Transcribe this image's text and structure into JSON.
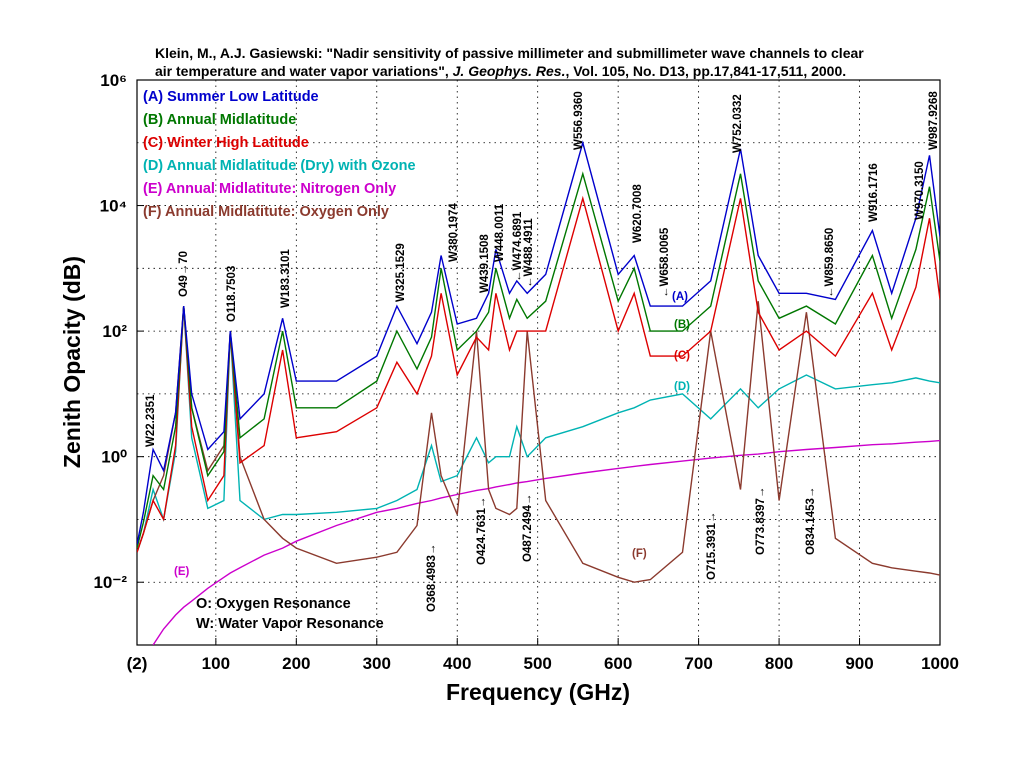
{
  "chart_data": {
    "type": "line",
    "title": [
      "Klein, M., A.J. Gasiewski: \"Nadir sensitivity of passive millimeter and submillimeter wave channels to clear",
      [
        "air temperature  and water vapor variations\", ",
        "J. Geophys. Res.",
        ", Vol. 105, No. D13, pp.17,841-17,511, 2000."
      ]
    ],
    "xlabel": "Frequency (GHz)",
    "ylabel": "Zenith Opacity (dB)",
    "log_y": true,
    "grid": true,
    "xlim": [
      2,
      1000
    ],
    "ylim": [
      0.001,
      1000000
    ],
    "xticks": [
      {
        "value": 2,
        "label": "(2)"
      },
      100,
      200,
      300,
      400,
      500,
      600,
      700,
      800,
      900,
      1000
    ],
    "yticks": [
      {
        "value": 0.01,
        "label": "10⁻²"
      },
      {
        "value": 1,
        "label": "10⁰"
      },
      {
        "value": 100,
        "label": "10²"
      },
      {
        "value": 10000,
        "label": "10⁴"
      },
      {
        "value": 1000000,
        "label": "10⁶"
      }
    ],
    "y_minor_ticks": [
      0.1,
      10,
      1000,
      100000
    ],
    "x": [
      2,
      10,
      22,
      35,
      50,
      60,
      70,
      90,
      110,
      118,
      130,
      160,
      183,
      200,
      250,
      300,
      325,
      350,
      368,
      380,
      400,
      424,
      439,
      448,
      465,
      474,
      487,
      510,
      556,
      600,
      620,
      640,
      680,
      715,
      752,
      774,
      800,
      834,
      870,
      916,
      940,
      970,
      987,
      1000
    ],
    "series": [
      {
        "name": "(A) Summer Low Latitude",
        "color": "#0000cc",
        "values": [
          0.04,
          0.13,
          1.3,
          0.6,
          5,
          250,
          10,
          1.3,
          2.5,
          100,
          4,
          10,
          160,
          16,
          16,
          40,
          250,
          63,
          200,
          1600,
          130,
          160,
          400,
          2000,
          400,
          630,
          400,
          800,
          100000,
          800,
          1600,
          250,
          250,
          630,
          80000,
          1600,
          400,
          400,
          320,
          4000,
          400,
          6300,
          63000,
          3200
        ]
      },
      {
        "name": "(B) Annual Midlatitude",
        "color": "#007700",
        "values": [
          0.035,
          0.09,
          0.5,
          0.3,
          3,
          250,
          6,
          0.5,
          1.2,
          100,
          2,
          4,
          100,
          6,
          6,
          16,
          100,
          25,
          80,
          1000,
          50,
          100,
          200,
          1000,
          160,
          320,
          160,
          300,
          32000,
          300,
          1000,
          100,
          100,
          250,
          32000,
          630,
          160,
          250,
          130,
          1600,
          160,
          2000,
          20000,
          1300
        ]
      },
      {
        "name": "(C) Winter High Latitude",
        "color": "#dd0000",
        "values": [
          0.03,
          0.06,
          0.2,
          0.1,
          1.5,
          250,
          3,
          0.2,
          0.5,
          100,
          0.8,
          1.5,
          50,
          2,
          2.5,
          6,
          32,
          10,
          40,
          400,
          20,
          80,
          50,
          400,
          50,
          100,
          100,
          100,
          13000,
          100,
          400,
          40,
          40,
          100,
          13000,
          200,
          50,
          100,
          40,
          400,
          50,
          500,
          6300,
          320
        ]
      },
      {
        "name": "(D) Annual Midlatitude (Dry) with Ozone",
        "color": "#00b3b3",
        "values": [
          0.03,
          0.06,
          0.3,
          0.1,
          1.2,
          250,
          2,
          0.15,
          0.2,
          100,
          0.2,
          0.1,
          0.12,
          0.12,
          0.13,
          0.15,
          0.2,
          0.3,
          1.5,
          0.4,
          0.5,
          2,
          0.8,
          1,
          1,
          3,
          1,
          2,
          3,
          5,
          6,
          8,
          10,
          4,
          12,
          6,
          12,
          20,
          12,
          14,
          15,
          18,
          16,
          15
        ]
      },
      {
        "name": "(E) Annual Midlatitute: Nitrogen Only",
        "color": "#cc00cc",
        "values": [
          null,
          null,
          0.001,
          0.0018,
          0.003,
          0.004,
          0.005,
          0.008,
          0.012,
          0.014,
          0.017,
          0.027,
          0.035,
          0.045,
          0.08,
          0.13,
          0.15,
          0.18,
          0.2,
          0.22,
          0.25,
          0.29,
          0.31,
          0.33,
          0.36,
          0.38,
          0.4,
          0.45,
          0.55,
          0.65,
          0.7,
          0.75,
          0.85,
          0.95,
          1.05,
          1.1,
          1.2,
          1.3,
          1.4,
          1.55,
          1.6,
          1.7,
          1.75,
          1.8
        ]
      },
      {
        "name": "(F) Annual Midlatitute: Oxygen Only",
        "color": "#8b3a2e",
        "values": [
          0.03,
          0.06,
          0.2,
          0.5,
          5,
          250,
          6,
          0.6,
          1.5,
          100,
          1,
          0.1,
          0.05,
          0.035,
          0.02,
          0.025,
          0.03,
          0.08,
          5,
          0.5,
          0.12,
          100,
          0.3,
          0.15,
          0.12,
          0.15,
          100,
          0.2,
          0.02,
          0.012,
          0.01,
          0.011,
          0.03,
          100,
          0.3,
          300,
          0.2,
          200,
          0.05,
          0.02,
          0.017,
          0.015,
          0.014,
          0.013
        ]
      }
    ],
    "curve_labels": [
      "(A)",
      "(B)",
      "(C)",
      "(D)",
      "(E)",
      "(F)"
    ],
    "line_labels": [
      "W22.2351",
      "O49→70",
      "O118.7503",
      "W183.3101",
      "W325.1529",
      "W380.1974",
      "W439.1508",
      "W448.0011",
      "←W474.6891",
      "←W488.4911",
      "W556.9360",
      "W620.7008",
      "←W658.0065",
      "W752.0332",
      "←W859.8650",
      "W916.1716",
      "W970.3150",
      "W987.9268",
      "O368.4983→",
      "O424.7631→",
      "O487.2494→",
      "O715.3931→",
      "O773.8397→",
      "O834.1453→"
    ],
    "notes": [
      "O: Oxygen Resonance",
      "W: Water Vapor Resonance"
    ]
  }
}
